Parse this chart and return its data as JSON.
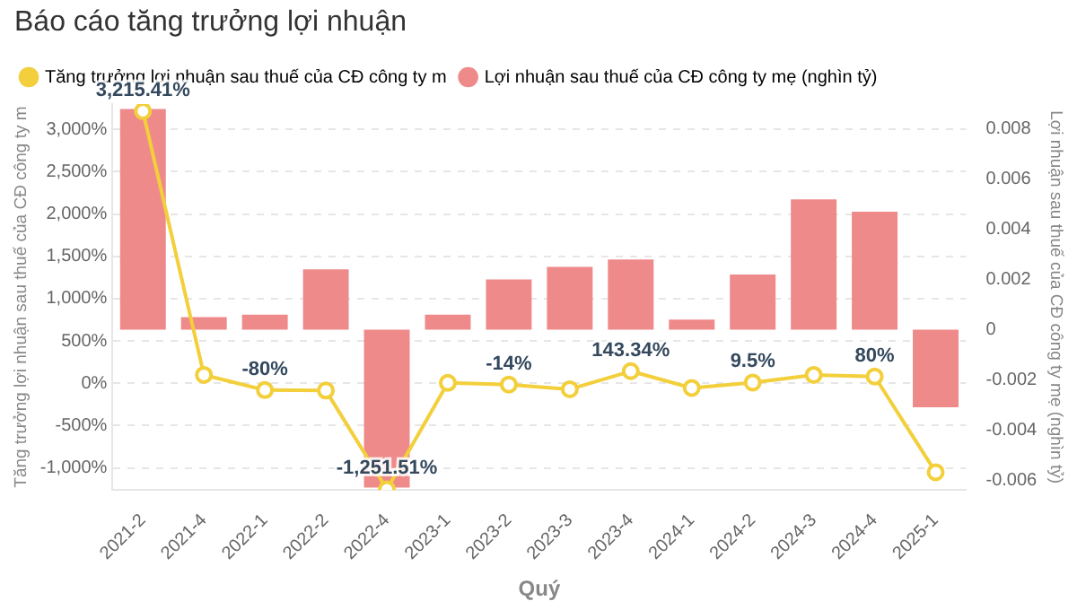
{
  "chart_data": {
    "type": "bar",
    "title": "Báo cáo tăng trưởng lợi nhuận",
    "xlabel": "Quý",
    "ylabel": "Tăng trưởng lợi nhuận sau thuế của CĐ công ty m",
    "y2label": "Lợi nhuận sau thuế của CĐ công ty mẹ (nghìn tỷ)",
    "categories": [
      "2021-2",
      "2021-4",
      "2022-1",
      "2022-2",
      "2022-4",
      "2023-1",
      "2023-2",
      "2023-3",
      "2023-4",
      "2024-1",
      "2024-2",
      "2024-3",
      "2024-4",
      "2025-1"
    ],
    "series": [
      {
        "name": "Tăng trưởng lợi nhuận sau thuế của CĐ công ty m",
        "type": "line",
        "color": "#f2cf3b",
        "values": [
          3215.41,
          100,
          -80,
          -85,
          -1251.51,
          5,
          -14,
          -70,
          143.34,
          -55,
          9.5,
          100,
          80,
          -1050
        ],
        "value_labels": [
          "3,215.41%",
          null,
          "-80%",
          null,
          "-1,251.51%",
          null,
          "-14%",
          null,
          "143.34%",
          null,
          "9.5%",
          null,
          "80%",
          null
        ]
      },
      {
        "name": "Lợi nhuận sau thuế của CĐ công ty mẹ (nghìn tỷ)",
        "axis": "y2",
        "color": "#ef8a8a",
        "values": [
          0.0088,
          0.0005,
          0.0006,
          0.0024,
          -0.0063,
          0.0006,
          0.002,
          0.0025,
          0.0028,
          0.0004,
          0.0022,
          0.0052,
          0.0047,
          -0.0031
        ]
      }
    ],
    "ylim": [
      -1260,
      3300
    ],
    "yticks": [
      {
        "value": -1000,
        "label": "-1,000%"
      },
      {
        "value": -500,
        "label": "-500%"
      },
      {
        "value": 0,
        "label": "0%"
      },
      {
        "value": 500,
        "label": "500%"
      },
      {
        "value": 1000,
        "label": "1,000%"
      },
      {
        "value": 1500,
        "label": "1,500%"
      },
      {
        "value": 2000,
        "label": "2,000%"
      },
      {
        "value": 2500,
        "label": "2,500%"
      },
      {
        "value": 3000,
        "label": "3,000%"
      }
    ],
    "y2lim": [
      -0.0064,
      0.009
    ],
    "y2ticks": [
      -0.006,
      -0.004,
      -0.002,
      0,
      0.002,
      0.004,
      0.006,
      0.008
    ],
    "grid": "y",
    "legend": "top left",
    "marker": "circle"
  }
}
